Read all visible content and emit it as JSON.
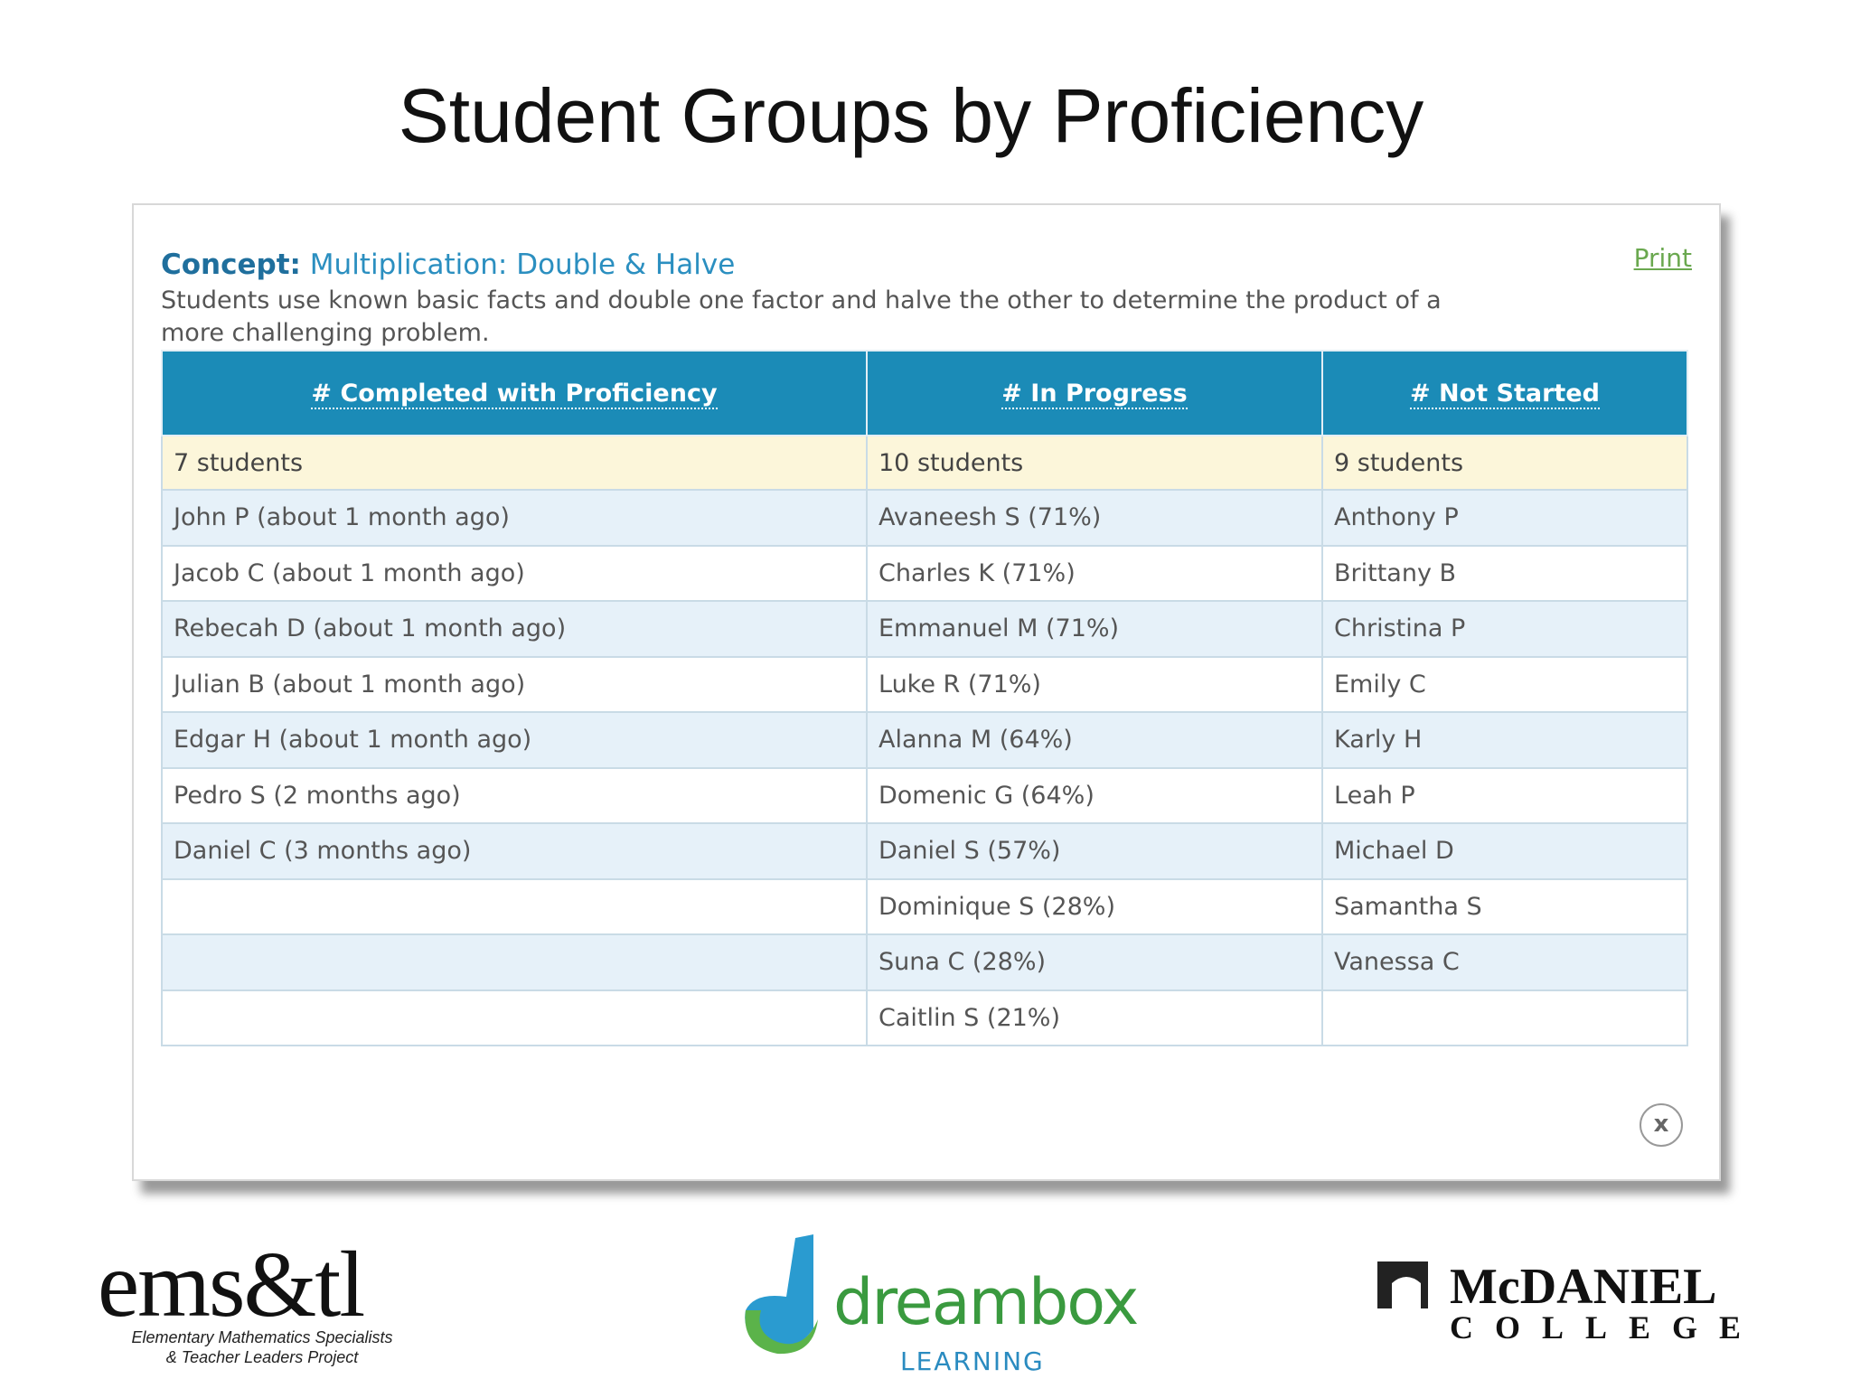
{
  "title": "Student Groups by Proficiency",
  "panel": {
    "concept_label": "Concept:",
    "concept_name": "Multiplication: Double & Halve",
    "description": "Students use known basic facts and double one factor and halve the other to determine the product of a more challenging problem.",
    "print": "Print",
    "close": "x",
    "table": {
      "columns": [
        {
          "header": "# Completed with Proficiency",
          "count": "7 students",
          "students": [
            "John P  (about 1 month ago)",
            "Jacob C (about 1 month ago)",
            "Rebecah D  (about 1 month ago)",
            "Julian B (about 1 month ago)",
            "Edgar H (about 1 month ago)",
            "Pedro S  (2 months ago)",
            "Daniel C  (3 months ago)"
          ]
        },
        {
          "header": "# In Progress",
          "count": "10 students",
          "students": [
            "Avaneesh S (71%)",
            "Charles K (71%)",
            "Emmanuel M (71%)",
            "Luke R (71%)",
            "Alanna M (64%)",
            "Domenic G (64%)",
            "Daniel S (57%)",
            "Dominique S (28%)",
            "Suna C (28%)",
            "Caitlin S (21%)"
          ]
        },
        {
          "header": "# Not Started",
          "count": "9 students",
          "students": [
            "Anthony P",
            "Brittany B",
            "Christina P",
            "Emily C",
            "Karly H",
            "Leah P",
            "Michael D",
            "Samantha S",
            "Vanessa C"
          ]
        }
      ]
    }
  },
  "logos": {
    "emstl": {
      "name": "ems&tl",
      "line1": "Elementary Mathematics Specialists",
      "line2": "& Teacher Leaders Project"
    },
    "dreambox": {
      "name": "dreambox",
      "sub": "LEARNING"
    },
    "mcdaniel": {
      "name": "McDANIEL",
      "sub": "COLLEGE"
    }
  }
}
